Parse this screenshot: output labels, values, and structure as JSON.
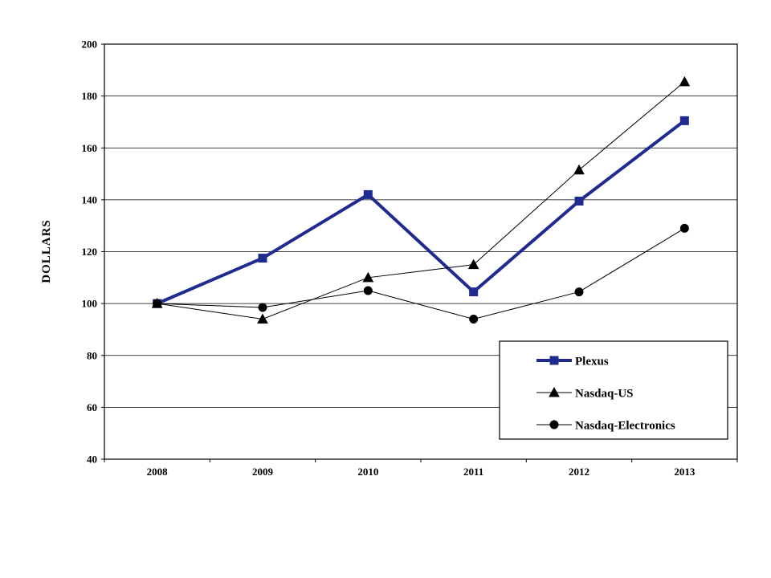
{
  "chart_data": {
    "type": "line",
    "title": "",
    "ylabel": "DOLLARS",
    "xlabel": "",
    "categories": [
      "2008",
      "2009",
      "2010",
      "2011",
      "2012",
      "2013"
    ],
    "series": [
      {
        "name": "Plexus",
        "marker": "square",
        "color": "#1F2B8F",
        "line_width": 4,
        "values": [
          100,
          117.5,
          142,
          104.5,
          139.5,
          170.5
        ]
      },
      {
        "name": "Nasdaq-US",
        "marker": "triangle",
        "color": "#000000",
        "line_width": 1,
        "values": [
          100,
          94,
          110,
          115,
          151.5,
          185.5
        ]
      },
      {
        "name": "Nasdaq-Electronics",
        "marker": "circle",
        "color": "#000000",
        "line_width": 1,
        "values": [
          100,
          98.5,
          105,
          94,
          104.5,
          129
        ]
      }
    ],
    "ylim": [
      40,
      200
    ],
    "ytick_step": 20,
    "grid": true,
    "legend_position": "bottom-right",
    "axis_color": "#000000",
    "background": "#ffffff"
  }
}
